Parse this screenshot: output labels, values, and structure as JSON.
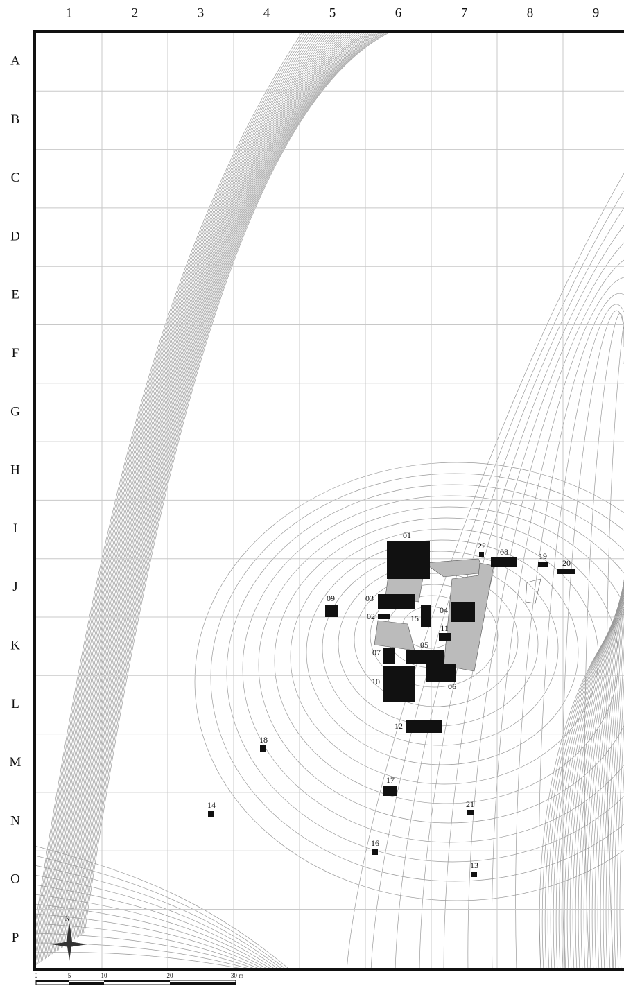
{
  "columns": [
    "1",
    "2",
    "3",
    "4",
    "5",
    "6",
    "7",
    "8",
    "9"
  ],
  "rows": [
    "A",
    "B",
    "C",
    "D",
    "E",
    "F",
    "G",
    "H",
    "I",
    "J",
    "K",
    "L",
    "M",
    "N",
    "O",
    "P"
  ],
  "structures": [
    "01",
    "22",
    "08",
    "19",
    "20",
    "09",
    "03",
    "02",
    "15",
    "04",
    "11",
    "05",
    "07",
    "10",
    "06",
    "12",
    "18",
    "17",
    "14",
    "21",
    "16",
    "13"
  ],
  "scale": {
    "labels": [
      "0",
      "5",
      "10",
      "20",
      "30 m"
    ]
  },
  "north": "N"
}
